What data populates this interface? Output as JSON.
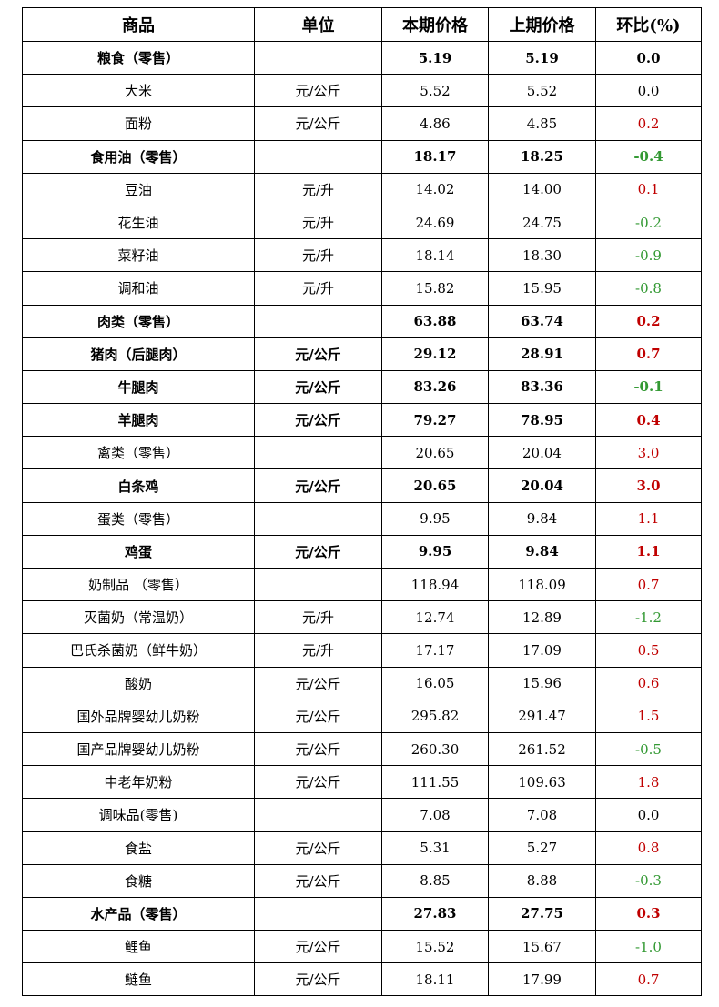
{
  "colors": {
    "increase": "#c00000",
    "decrease": "#339933",
    "neutral": "#000000"
  },
  "table": {
    "headers": [
      "商品",
      "单位",
      "本期价格",
      "上期价格",
      "环比(%)"
    ],
    "rows": [
      {
        "name": "粮食（零售）",
        "unit": "",
        "current": "5.19",
        "previous": "5.19",
        "change": "0.0",
        "bold": true,
        "trend": "flat"
      },
      {
        "name": "大米",
        "unit": "元/公斤",
        "current": "5.52",
        "previous": "5.52",
        "change": "0.0",
        "bold": false,
        "trend": "flat"
      },
      {
        "name": "面粉",
        "unit": "元/公斤",
        "current": "4.86",
        "previous": "4.85",
        "change": "0.2",
        "bold": false,
        "trend": "up"
      },
      {
        "name": "食用油（零售）",
        "unit": "",
        "current": "18.17",
        "previous": "18.25",
        "change": "-0.4",
        "bold": true,
        "trend": "down"
      },
      {
        "name": "豆油",
        "unit": "元/升",
        "current": "14.02",
        "previous": "14.00",
        "change": "0.1",
        "bold": false,
        "trend": "up"
      },
      {
        "name": "花生油",
        "unit": "元/升",
        "current": "24.69",
        "previous": "24.75",
        "change": "-0.2",
        "bold": false,
        "trend": "down"
      },
      {
        "name": "菜籽油",
        "unit": "元/升",
        "current": "18.14",
        "previous": "18.30",
        "change": "-0.9",
        "bold": false,
        "trend": "down"
      },
      {
        "name": "调和油",
        "unit": "元/升",
        "current": "15.82",
        "previous": "15.95",
        "change": "-0.8",
        "bold": false,
        "trend": "down"
      },
      {
        "name": "肉类（零售）",
        "unit": "",
        "current": "63.88",
        "previous": "63.74",
        "change": "0.2",
        "bold": true,
        "trend": "up"
      },
      {
        "name": "猪肉（后腿肉）",
        "unit": "元/公斤",
        "current": "29.12",
        "previous": "28.91",
        "change": "0.7",
        "bold": true,
        "trend": "up"
      },
      {
        "name": "牛腿肉",
        "unit": "元/公斤",
        "current": "83.26",
        "previous": "83.36",
        "change": "-0.1",
        "bold": true,
        "trend": "down"
      },
      {
        "name": "羊腿肉",
        "unit": "元/公斤",
        "current": "79.27",
        "previous": "78.95",
        "change": "0.4",
        "bold": true,
        "trend": "up"
      },
      {
        "name": "禽类（零售）",
        "unit": "",
        "current": "20.65",
        "previous": "20.04",
        "change": "3.0",
        "bold": false,
        "trend": "up"
      },
      {
        "name": "白条鸡",
        "unit": "元/公斤",
        "current": "20.65",
        "previous": "20.04",
        "change": "3.0",
        "bold": true,
        "trend": "up"
      },
      {
        "name": "蛋类（零售）",
        "unit": "",
        "current": "9.95",
        "previous": "9.84",
        "change": "1.1",
        "bold": false,
        "trend": "up"
      },
      {
        "name": "鸡蛋",
        "unit": "元/公斤",
        "current": "9.95",
        "previous": "9.84",
        "change": "1.1",
        "bold": true,
        "trend": "up"
      },
      {
        "name": "奶制品 （零售）",
        "unit": "",
        "current": "118.94",
        "previous": "118.09",
        "change": "0.7",
        "bold": false,
        "trend": "up"
      },
      {
        "name": "灭菌奶（常温奶）",
        "unit": "元/升",
        "current": "12.74",
        "previous": "12.89",
        "change": "-1.2",
        "bold": false,
        "trend": "down"
      },
      {
        "name": "巴氏杀菌奶（鲜牛奶）",
        "unit": "元/升",
        "current": "17.17",
        "previous": "17.09",
        "change": "0.5",
        "bold": false,
        "trend": "up"
      },
      {
        "name": "酸奶",
        "unit": "元/公斤",
        "current": "16.05",
        "previous": "15.96",
        "change": "0.6",
        "bold": false,
        "trend": "up"
      },
      {
        "name": "国外品牌婴幼儿奶粉",
        "unit": "元/公斤",
        "current": "295.82",
        "previous": "291.47",
        "change": "1.5",
        "bold": false,
        "trend": "up"
      },
      {
        "name": "国产品牌婴幼儿奶粉",
        "unit": "元/公斤",
        "current": "260.30",
        "previous": "261.52",
        "change": "-0.5",
        "bold": false,
        "trend": "down"
      },
      {
        "name": "中老年奶粉",
        "unit": "元/公斤",
        "current": "111.55",
        "previous": "109.63",
        "change": "1.8",
        "bold": false,
        "trend": "up"
      },
      {
        "name": "调味品(零售)",
        "unit": "",
        "current": "7.08",
        "previous": "7.08",
        "change": "0.0",
        "bold": false,
        "trend": "flat"
      },
      {
        "name": "食盐",
        "unit": "元/公斤",
        "current": "5.31",
        "previous": "5.27",
        "change": "0.8",
        "bold": false,
        "trend": "up"
      },
      {
        "name": "食糖",
        "unit": "元/公斤",
        "current": "8.85",
        "previous": "8.88",
        "change": "-0.3",
        "bold": false,
        "trend": "down"
      },
      {
        "name": "水产品（零售）",
        "unit": "",
        "current": "27.83",
        "previous": "27.75",
        "change": "0.3",
        "bold": true,
        "trend": "up"
      },
      {
        "name": "鲤鱼",
        "unit": "元/公斤",
        "current": "15.52",
        "previous": "15.67",
        "change": "-1.0",
        "bold": false,
        "trend": "down"
      },
      {
        "name": "鲢鱼",
        "unit": "元/公斤",
        "current": "18.11",
        "previous": "17.99",
        "change": "0.7",
        "bold": false,
        "trend": "up"
      }
    ]
  }
}
